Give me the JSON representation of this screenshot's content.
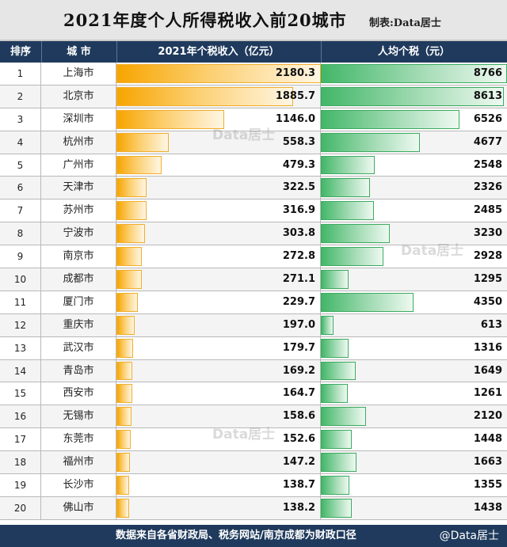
{
  "header": {
    "title": "2021年度个人所得税收入前20城市",
    "credit": "制表:Data居士",
    "col_rank": "排序",
    "col_city": "城 市",
    "col_tax": "2021年个税收入（亿元）",
    "col_per": "人均个税（元）"
  },
  "watermark": "Data居士",
  "footer": {
    "note": "数据来自各省财政局、税务网站/南京成都为财政口径",
    "brand": "@Data居士"
  },
  "colors": {
    "header_bg": "#1f3a5c",
    "tax_bar": "#f7a500",
    "per_bar": "#42b768"
  },
  "chart_data": {
    "type": "table",
    "title": "2021年度个人所得税收入前20城市",
    "columns": [
      "排序",
      "城 市",
      "2021年个税收入（亿元）",
      "人均个税（元）"
    ],
    "rows": [
      {
        "rank": "1",
        "city": "上海市",
        "tax": "2180.3",
        "per": "8766"
      },
      {
        "rank": "2",
        "city": "北京市",
        "tax": "1885.7",
        "per": "8613"
      },
      {
        "rank": "3",
        "city": "深圳市",
        "tax": "1146.0",
        "per": "6526"
      },
      {
        "rank": "4",
        "city": "杭州市",
        "tax": "558.3",
        "per": "4677"
      },
      {
        "rank": "5",
        "city": "广州市",
        "tax": "479.3",
        "per": "2548"
      },
      {
        "rank": "6",
        "city": "天津市",
        "tax": "322.5",
        "per": "2326"
      },
      {
        "rank": "7",
        "city": "苏州市",
        "tax": "316.9",
        "per": "2485"
      },
      {
        "rank": "8",
        "city": "宁波市",
        "tax": "303.8",
        "per": "3230"
      },
      {
        "rank": "9",
        "city": "南京市",
        "tax": "272.8",
        "per": "2928"
      },
      {
        "rank": "10",
        "city": "成都市",
        "tax": "271.1",
        "per": "1295"
      },
      {
        "rank": "11",
        "city": "厦门市",
        "tax": "229.7",
        "per": "4350"
      },
      {
        "rank": "12",
        "city": "重庆市",
        "tax": "197.0",
        "per": "613"
      },
      {
        "rank": "13",
        "city": "武汉市",
        "tax": "179.7",
        "per": "1316"
      },
      {
        "rank": "14",
        "city": "青岛市",
        "tax": "169.2",
        "per": "1649"
      },
      {
        "rank": "15",
        "city": "西安市",
        "tax": "164.7",
        "per": "1261"
      },
      {
        "rank": "16",
        "city": "无锡市",
        "tax": "158.6",
        "per": "2120"
      },
      {
        "rank": "17",
        "city": "东莞市",
        "tax": "152.6",
        "per": "1448"
      },
      {
        "rank": "18",
        "city": "福州市",
        "tax": "147.2",
        "per": "1663"
      },
      {
        "rank": "19",
        "city": "长沙市",
        "tax": "138.7",
        "per": "1355"
      },
      {
        "rank": "20",
        "city": "佛山市",
        "tax": "138.2",
        "per": "1438"
      }
    ]
  }
}
